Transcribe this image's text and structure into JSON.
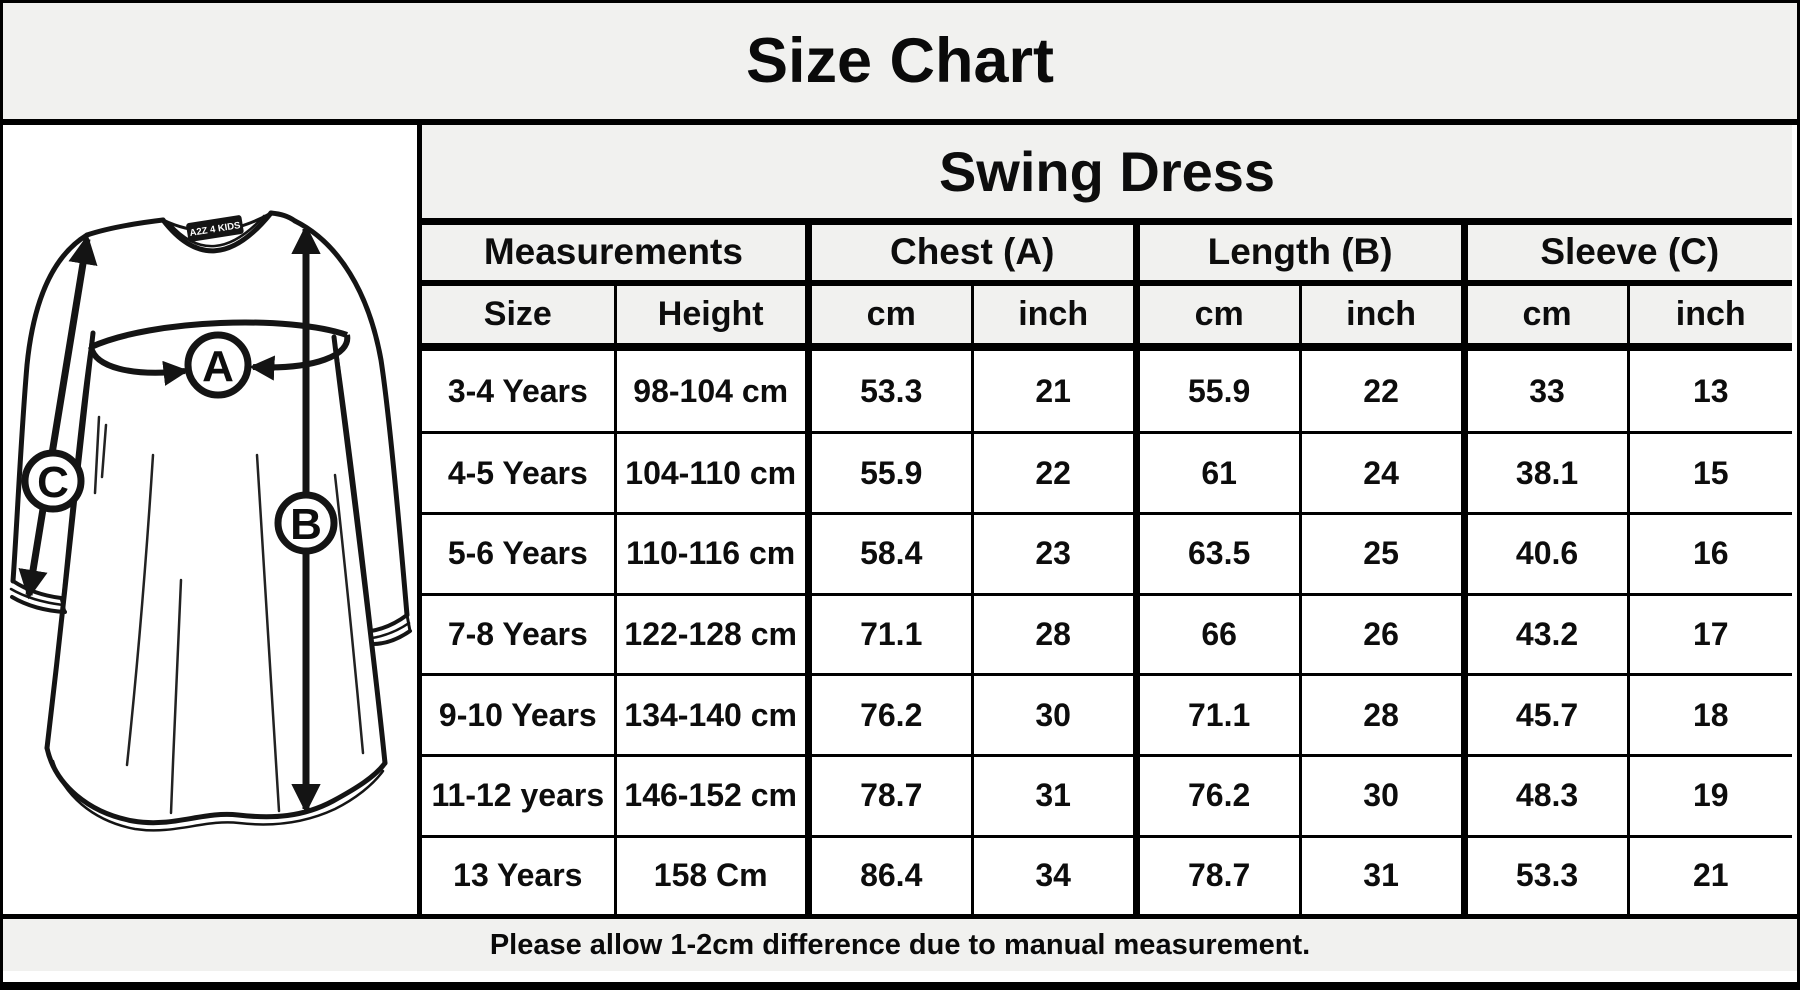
{
  "title": "Size Chart",
  "illustration": {
    "tag_text": "A2Z 4 KIDS",
    "label_a": "A",
    "label_b": "B",
    "label_c": "C"
  },
  "chart_data": {
    "type": "table",
    "title": "Size Chart",
    "product": "Swing Dress",
    "group_headers": [
      "Measurements",
      "Chest (A)",
      "Length (B)",
      "Sleeve (C)"
    ],
    "sub_headers": [
      "Size",
      "Height",
      "cm",
      "inch",
      "cm",
      "inch",
      "cm",
      "inch"
    ],
    "rows": [
      [
        "3-4 Years",
        "98-104 cm",
        "53.3",
        "21",
        "55.9",
        "22",
        "33",
        "13"
      ],
      [
        "4-5 Years",
        "104-110 cm",
        "55.9",
        "22",
        "61",
        "24",
        "38.1",
        "15"
      ],
      [
        "5-6 Years",
        "110-116 cm",
        "58.4",
        "23",
        "63.5",
        "25",
        "40.6",
        "16"
      ],
      [
        "7-8 Years",
        "122-128 cm",
        "71.1",
        "28",
        "66",
        "26",
        "43.2",
        "17"
      ],
      [
        "9-10 Years",
        "134-140 cm",
        "76.2",
        "30",
        "71.1",
        "28",
        "45.7",
        "18"
      ],
      [
        "11-12 years",
        "146-152 cm",
        "78.7",
        "31",
        "76.2",
        "30",
        "48.3",
        "19"
      ],
      [
        "13 Years",
        "158 Cm",
        "86.4",
        "34",
        "78.7",
        "31",
        "53.3",
        "21"
      ]
    ],
    "note": "Please allow 1-2cm difference due to manual measurement."
  },
  "colors": {
    "panel_bg": "#f1f1ef",
    "cell_bg": "#ffffff",
    "border": "#000000",
    "line_art": "#141414"
  }
}
